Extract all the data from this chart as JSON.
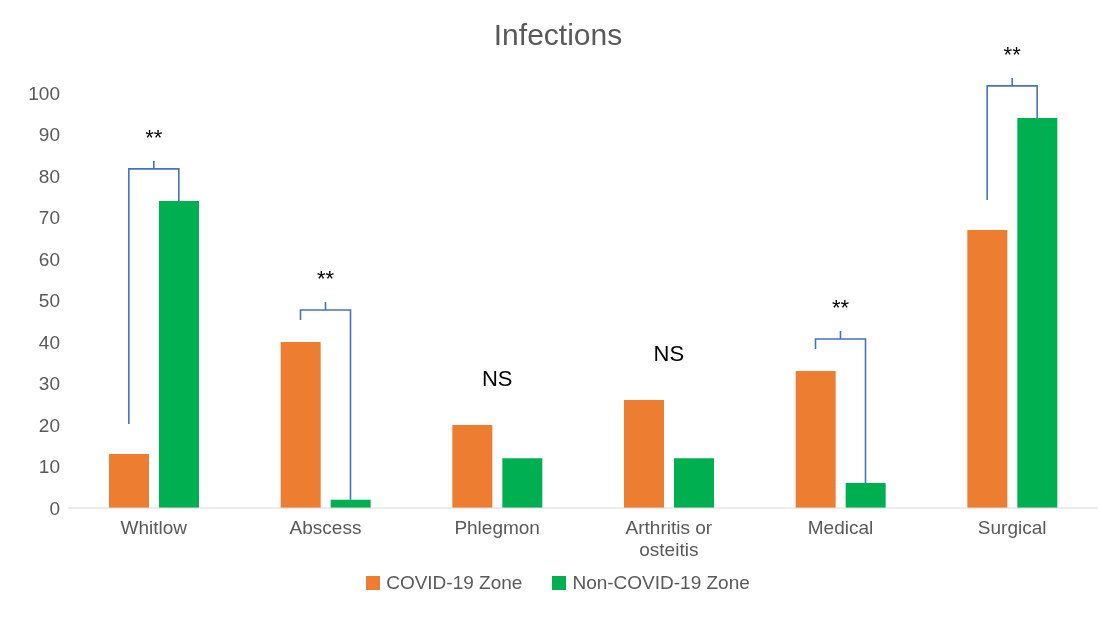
{
  "chart_data": {
    "type": "bar",
    "title": "Infections",
    "categories": [
      "Whitlow",
      "Abscess",
      "Phlegmon",
      "Arthritis or osteitis",
      "Medical",
      "Surgical"
    ],
    "series": [
      {
        "name": "COVID-19 Zone",
        "color": "#ed7d31",
        "values": [
          13,
          40,
          20,
          26,
          33,
          67
        ]
      },
      {
        "name": "Non-COVID-19 Zone",
        "color": "#00b050",
        "values": [
          74,
          2,
          12,
          12,
          6,
          94
        ]
      }
    ],
    "ylim": [
      0,
      100
    ],
    "yticks": [
      0,
      10,
      20,
      30,
      40,
      50,
      60,
      70,
      80,
      90,
      100
    ],
    "grid": false,
    "legend": "bottom",
    "annotations": [
      "**",
      "**",
      "NS",
      "NS",
      "**",
      "**"
    ]
  }
}
